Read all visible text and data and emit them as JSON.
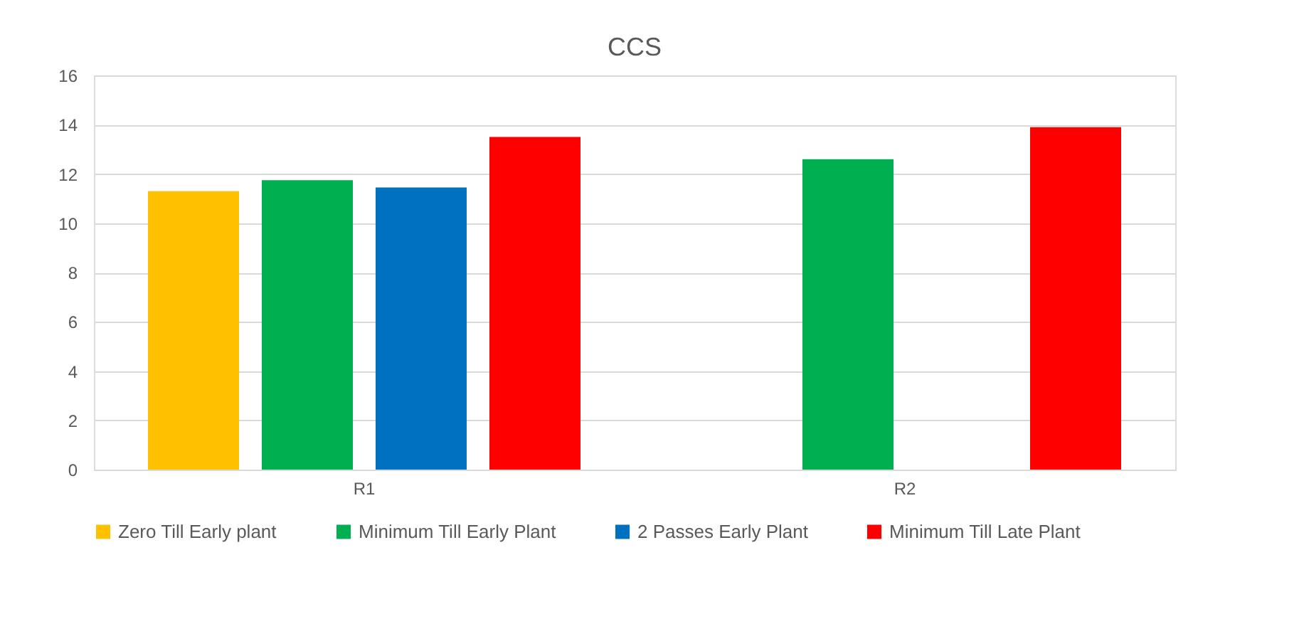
{
  "chart_data": {
    "type": "bar",
    "title": "CCS",
    "categories": [
      "R1",
      "R2"
    ],
    "series": [
      {
        "name": "Zero Till Early plant",
        "color": "#ffc000",
        "values": [
          11.3,
          null
        ]
      },
      {
        "name": "Minimum Till Early Plant",
        "color": "#00b050",
        "values": [
          11.75,
          12.6
        ]
      },
      {
        "name": "2 Passes Early Plant",
        "color": "#0070c0",
        "values": [
          11.45,
          null
        ]
      },
      {
        "name": "Minimum Till Late Plant",
        "color": "#ff0000",
        "values": [
          13.5,
          13.9
        ]
      }
    ],
    "ylim": [
      0,
      16
    ],
    "yticks": [
      0,
      2,
      4,
      6,
      8,
      10,
      12,
      14,
      16
    ],
    "grid": "y",
    "legend": "bottom"
  }
}
